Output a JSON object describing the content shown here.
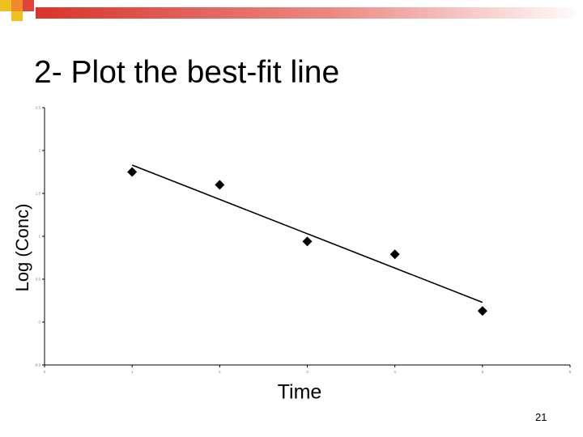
{
  "slide": {
    "title": "2- Plot the best-fit line",
    "page_number": "21"
  },
  "colors": {
    "accent_red": "#e0443a",
    "accent_orange": "#f08a2a",
    "accent_yellow": "#f0c020",
    "band_red": "#d9342b",
    "marker": "#000000"
  },
  "chart_data": {
    "type": "scatter",
    "title": "",
    "xlabel": "Time",
    "ylabel": "Log (Conc)",
    "xlim": [
      0,
      6
    ],
    "ylim": [
      -0.5,
      2.5
    ],
    "grid": false,
    "legend": "none",
    "x_ticks": [
      0,
      1,
      2,
      3,
      4,
      5,
      6
    ],
    "y_ticks": [
      -0.5,
      0,
      0.5,
      1,
      1.5,
      2,
      2.5
    ],
    "x_tick_labels": [
      "0",
      "1",
      "2",
      "3",
      "4",
      "5",
      "6"
    ],
    "y_tick_labels": [
      "-0.5",
      "0",
      "0.5",
      "1",
      "1.5",
      "2",
      "2.5"
    ],
    "series": [
      {
        "x": [
          1,
          2,
          3,
          4,
          5
        ],
        "y": [
          1.75,
          1.6,
          0.94,
          0.79,
          0.13
        ]
      }
    ],
    "fit_line": {
      "x": [
        1,
        5
      ],
      "y": [
        1.83,
        0.23
      ]
    }
  }
}
